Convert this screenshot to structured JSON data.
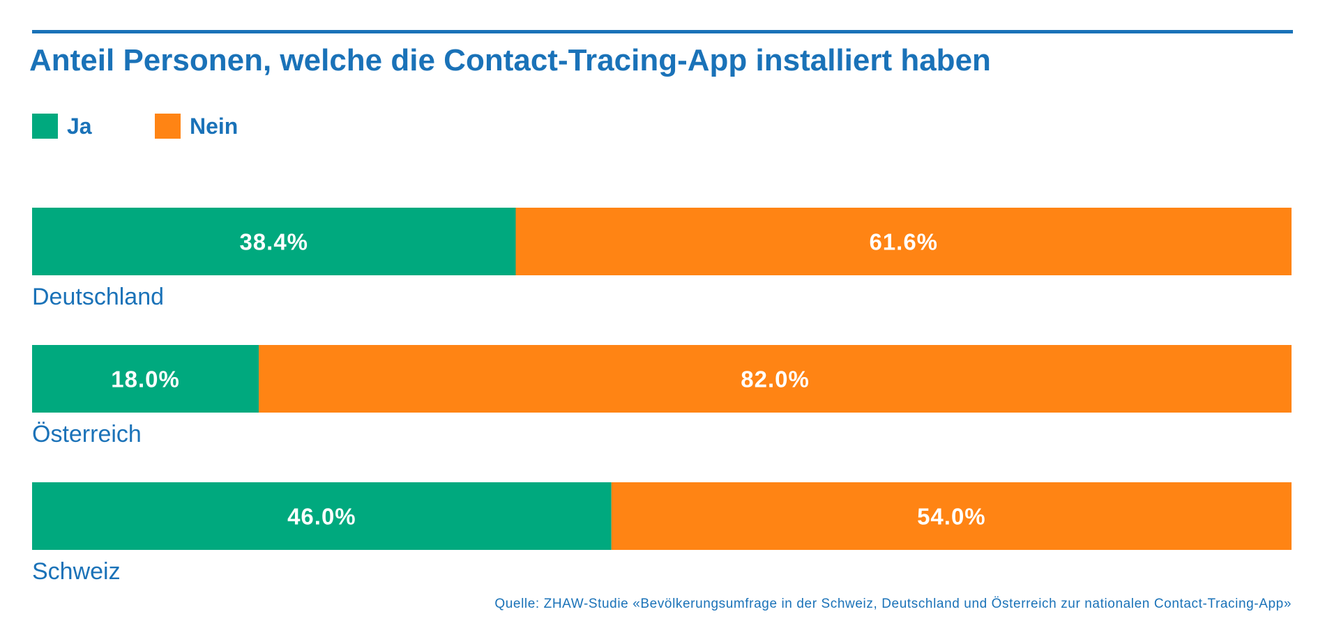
{
  "chart_data": {
    "type": "bar",
    "orientation": "horizontal",
    "stacked": true,
    "normalized": true,
    "title": "Anteil Personen, welche die Contact-Tracing-App installiert haben",
    "categories": [
      "Deutschland",
      "Österreich",
      "Schweiz"
    ],
    "series": [
      {
        "name": "Ja",
        "color": "#00a97e",
        "values": [
          38.4,
          18.0,
          46.0
        ],
        "labels": [
          "38.4%",
          "18.0%",
          "46.0%"
        ]
      },
      {
        "name": "Nein",
        "color": "#ff8414",
        "values": [
          61.6,
          82.0,
          54.0
        ],
        "labels": [
          "61.6%",
          "82.0%",
          "54.0%"
        ]
      }
    ],
    "xlim": [
      0,
      100
    ],
    "unit": "%",
    "source": "Quelle: ZHAW-Studie «Bevölkerungsumfrage in der Schweiz, Deutschland und Österreich zur nationalen Contact-Tracing-App»"
  },
  "colors": {
    "accent": "#1a72b8",
    "ja": "#00a97e",
    "nein": "#ff8414"
  }
}
